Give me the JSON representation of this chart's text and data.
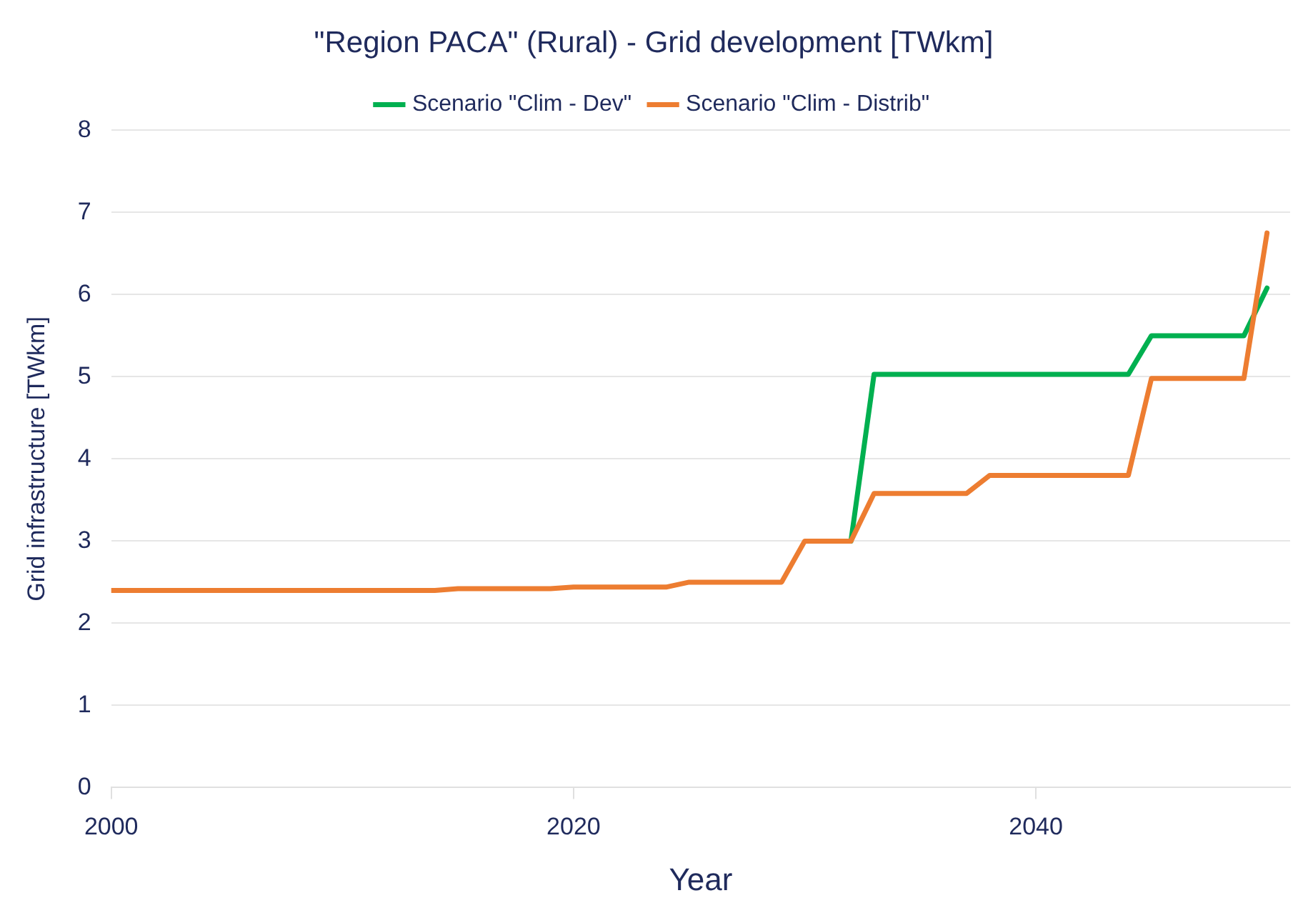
{
  "chart_data": {
    "type": "line",
    "title": "\"Region PACA\" (Rural) - Grid development [TWkm]",
    "xlabel": "Year",
    "ylabel": "Grid infrastructure [TWkm]",
    "series": [
      {
        "name": "Scenario \"Clim - Dev\"",
        "color": "#00b050",
        "x": [
          2032,
          2033,
          2044,
          2045,
          2049,
          2050
        ],
        "values": [
          3.0,
          5.03,
          5.03,
          5.5,
          5.5,
          6.08
        ]
      },
      {
        "name": "Scenario \"Clim - Distrib\"",
        "color": "#ed7d31",
        "x": [
          2000,
          2014,
          2015,
          2019,
          2020,
          2024,
          2025,
          2029,
          2030,
          2032,
          2033,
          2037,
          2038,
          2044,
          2045,
          2049,
          2050
        ],
        "values": [
          2.4,
          2.4,
          2.42,
          2.42,
          2.44,
          2.44,
          2.5,
          2.5,
          3.0,
          3.0,
          3.58,
          3.58,
          3.8,
          3.8,
          4.98,
          4.98,
          6.75
        ]
      }
    ],
    "xlim": [
      2000,
      2051
    ],
    "xticks": [
      2000,
      2020,
      2040
    ],
    "ylim": [
      0,
      8
    ],
    "yticks": [
      0,
      1,
      2,
      3,
      4,
      5,
      6,
      7,
      8
    ],
    "grid": "y",
    "legend": "top",
    "marker": "none",
    "line_style": "solid"
  }
}
